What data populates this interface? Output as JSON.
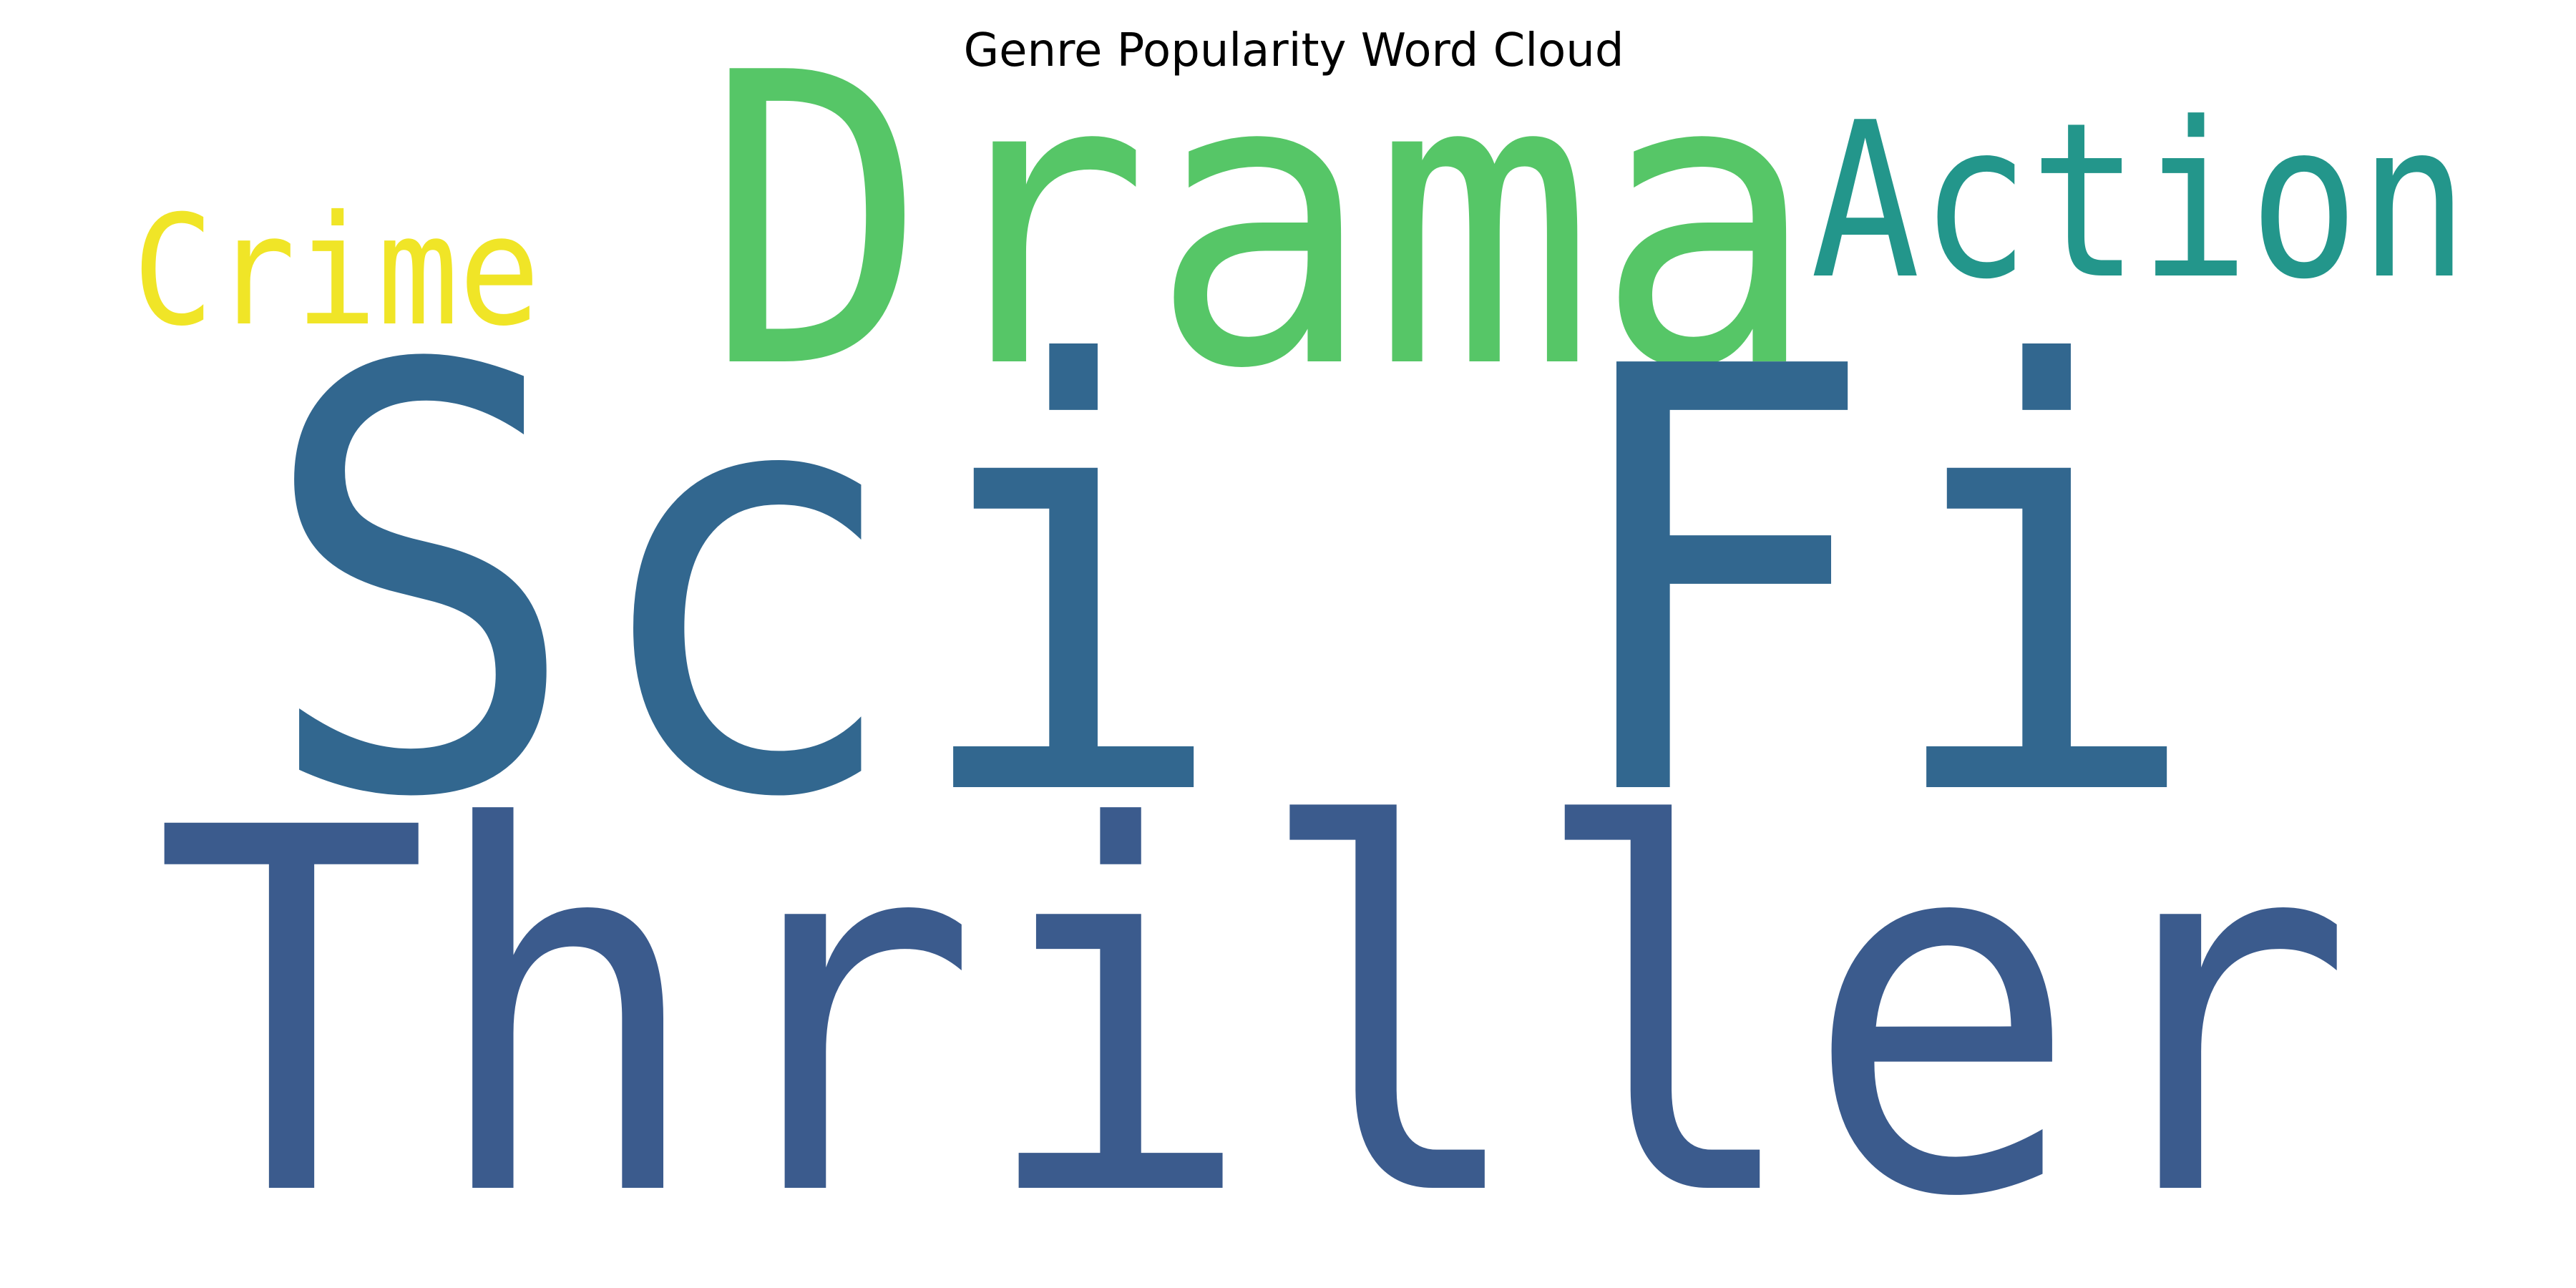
{
  "chart_data": {
    "type": "wordcloud",
    "title": "Genre Popularity Word Cloud",
    "words": [
      {
        "text": "Drama",
        "color": "#56c667"
      },
      {
        "text": "Action",
        "color": "#23968b"
      },
      {
        "text": "Crime",
        "color": "#f0e527"
      },
      {
        "text": "Sci Fi",
        "color": "#32678f"
      },
      {
        "text": "Thriller",
        "color": "#3b5b8d"
      }
    ]
  }
}
